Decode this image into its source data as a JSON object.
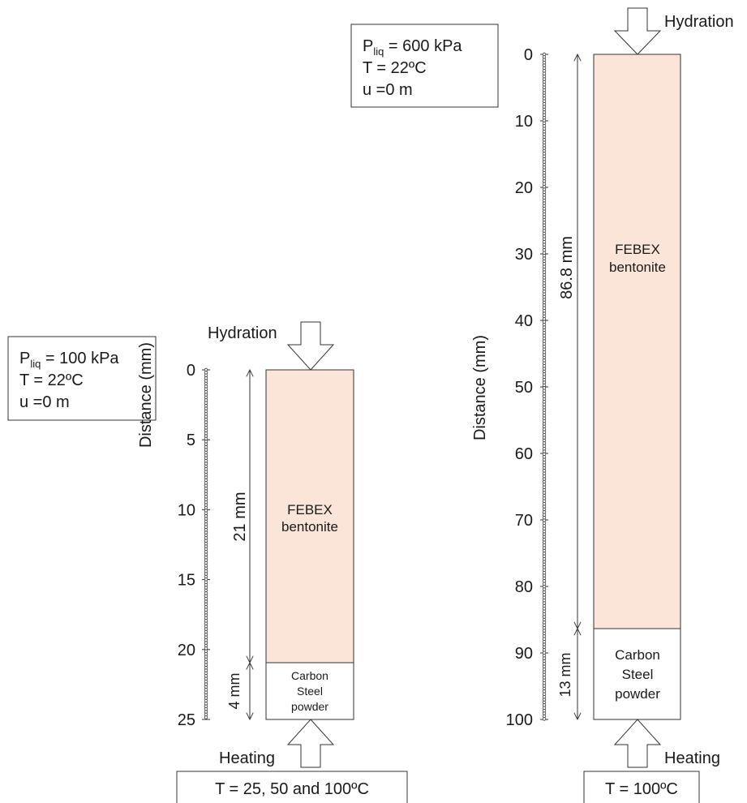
{
  "left_column": {
    "conditions": {
      "pressure_symbol": "P",
      "pressure_subscript": "liq",
      "pressure_value": " = 100 kPa",
      "temperature": "T = 22ºC",
      "displacement": "u =0 m"
    },
    "hydration_label": "Hydration",
    "heating_label": "Heating",
    "heating_condition": "T = 25, 50 and 100ºC",
    "axis": {
      "label": "Distance (mm)",
      "ticks": [
        "0",
        "5",
        "10",
        "15",
        "20",
        "25"
      ],
      "range": [
        0,
        25
      ]
    },
    "bentonite": {
      "label_line1": "FEBEX",
      "label_line2": "bentonite",
      "thickness": "21 mm",
      "fill": "#fae5d8"
    },
    "steel": {
      "label_line1": "Carbon",
      "label_line2": "Steel",
      "label_line3": "powder",
      "thickness": "4 mm"
    }
  },
  "right_column": {
    "conditions": {
      "pressure_symbol": "P",
      "pressure_subscript": "liq",
      "pressure_value": " = 600 kPa",
      "temperature": "T = 22ºC",
      "displacement": "u =0 m"
    },
    "hydration_label": "Hydration",
    "heating_label": "Heating",
    "heating_condition": "T = 100ºC",
    "axis": {
      "label": "Distance (mm)",
      "ticks": [
        "0",
        "10",
        "20",
        "30",
        "40",
        "50",
        "60",
        "70",
        "80",
        "90",
        "100"
      ],
      "range": [
        0,
        100
      ]
    },
    "bentonite": {
      "label_line1": "FEBEX",
      "label_line2": "bentonite",
      "thickness": "86.8 mm",
      "fill": "#fae5d8"
    },
    "steel": {
      "label_line1": "Carbon",
      "label_line2": "Steel",
      "label_line3": "powder",
      "thickness": "13 mm"
    }
  }
}
